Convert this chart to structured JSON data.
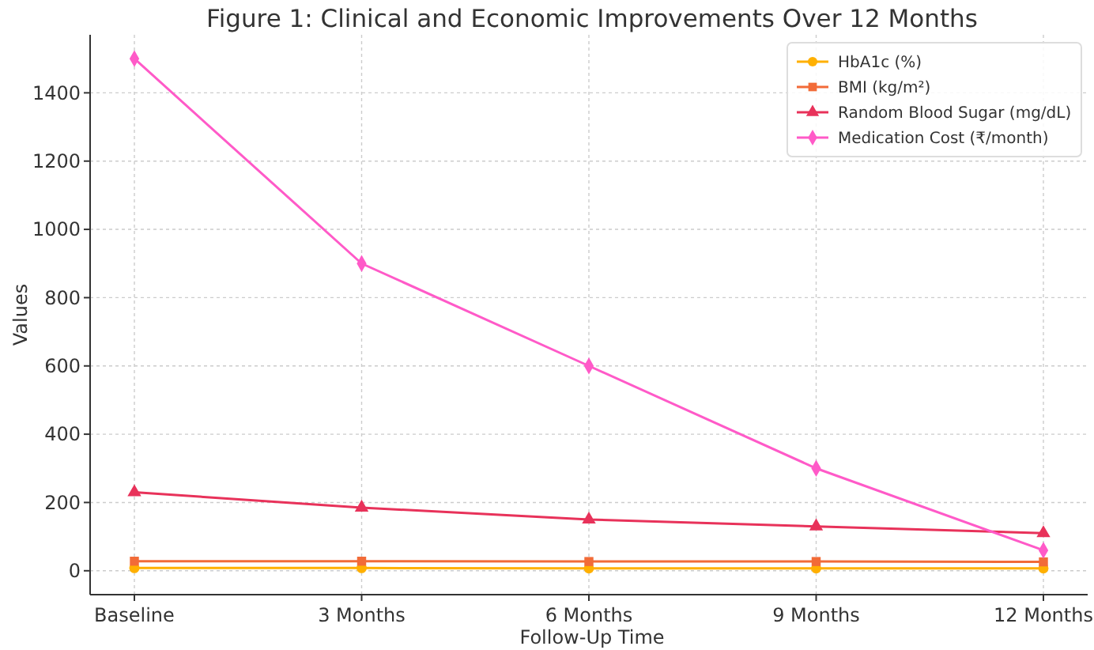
{
  "chart_data": {
    "type": "line",
    "title": "Figure 1: Clinical and Economic Improvements Over 12 Months",
    "xlabel": "Follow-Up Time",
    "ylabel": "Values",
    "categories": [
      "Baseline",
      "3 Months",
      "6 Months",
      "9 Months",
      "12 Months"
    ],
    "series": [
      {
        "name": "HbA1c (%)",
        "color": "#ffb000",
        "marker": "circle",
        "values": [
          8,
          8,
          7,
          7,
          7
        ]
      },
      {
        "name": "BMI (kg/m²)",
        "color": "#f26b38",
        "marker": "square",
        "values": [
          28,
          28,
          27,
          27,
          26
        ]
      },
      {
        "name": "Random Blood Sugar (mg/dL)",
        "color": "#e8325a",
        "marker": "triangle",
        "values": [
          230,
          185,
          150,
          130,
          110
        ]
      },
      {
        "name": "Medication Cost (₹/month)",
        "color": "#ff5ac8",
        "marker": "diamond",
        "values": [
          1500,
          900,
          600,
          300,
          60
        ]
      }
    ],
    "ylim": [
      -70,
      1570
    ],
    "yticks": [
      0,
      200,
      400,
      600,
      800,
      1000,
      1200,
      1400
    ],
    "grid": true,
    "legend": "top right",
    "line_style": "solid"
  }
}
